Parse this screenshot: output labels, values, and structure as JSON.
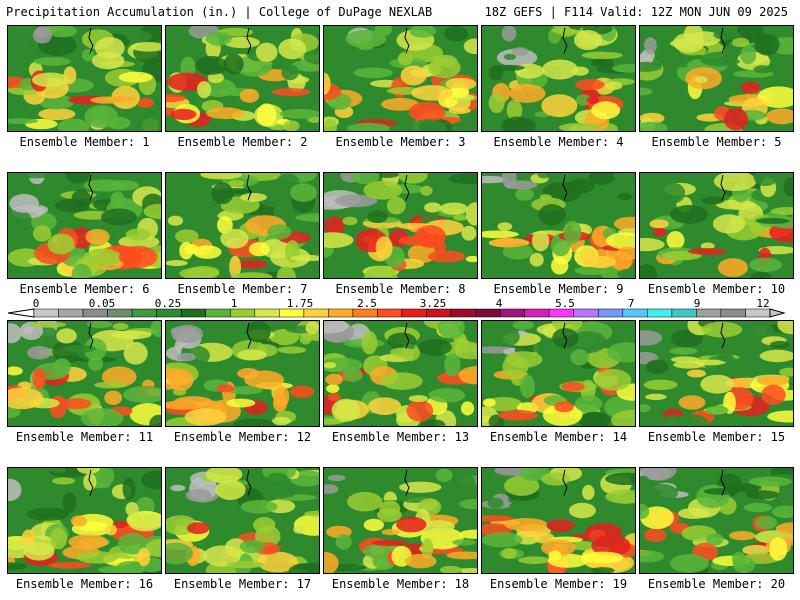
{
  "header": {
    "title": "Precipitation Accumulation (in.) | College of DuPage NEXLAB",
    "valid": "18Z GEFS | F114 Valid: 12Z MON JUN 09 2025"
  },
  "colors": {
    "legend_bins": [
      "#c8c8c8",
      "#a8a8a8",
      "#8c8c8c",
      "#6e8f6e",
      "#3e9a3e",
      "#2f8a2e",
      "#1f6e1f",
      "#59b53a",
      "#9acd32",
      "#d6e84a",
      "#ffff3c",
      "#ffd23c",
      "#ffaa28",
      "#ff7f1e",
      "#ff4b1e",
      "#e61e1e",
      "#c8141e",
      "#a00a28",
      "#7a0a3c",
      "#a0147a",
      "#d21eb4",
      "#ff32ff",
      "#b478ff",
      "#7896ff",
      "#50c8ff",
      "#3cf0f0",
      "#3cc8c8",
      "#a0a0a0",
      "#8c8c8c",
      "#c8c8c8"
    ]
  },
  "colorbar": {
    "labels": [
      "0",
      "0.05",
      "0.25",
      "1",
      "1.75",
      "2.5",
      "3.25",
      "4",
      "5.5",
      "7",
      "9",
      "12"
    ]
  },
  "members": [
    {
      "caption": "Ensemble Member: 1"
    },
    {
      "caption": "Ensemble Member: 2"
    },
    {
      "caption": "Ensemble Member: 3"
    },
    {
      "caption": "Ensemble Member: 4"
    },
    {
      "caption": "Ensemble Member: 5"
    },
    {
      "caption": "Ensemble Member: 6"
    },
    {
      "caption": "Ensemble Member: 7"
    },
    {
      "caption": "Ensemble Member: 8"
    },
    {
      "caption": "Ensemble Member: 9"
    },
    {
      "caption": "Ensemble Member: 10"
    },
    {
      "caption": "Ensemble Member: 11"
    },
    {
      "caption": "Ensemble Member: 12"
    },
    {
      "caption": "Ensemble Member: 13"
    },
    {
      "caption": "Ensemble Member: 14"
    },
    {
      "caption": "Ensemble Member: 15"
    },
    {
      "caption": "Ensemble Member: 16"
    },
    {
      "caption": "Ensemble Member: 17"
    },
    {
      "caption": "Ensemble Member: 18"
    },
    {
      "caption": "Ensemble Member: 19"
    },
    {
      "caption": "Ensemble Member: 20"
    }
  ]
}
